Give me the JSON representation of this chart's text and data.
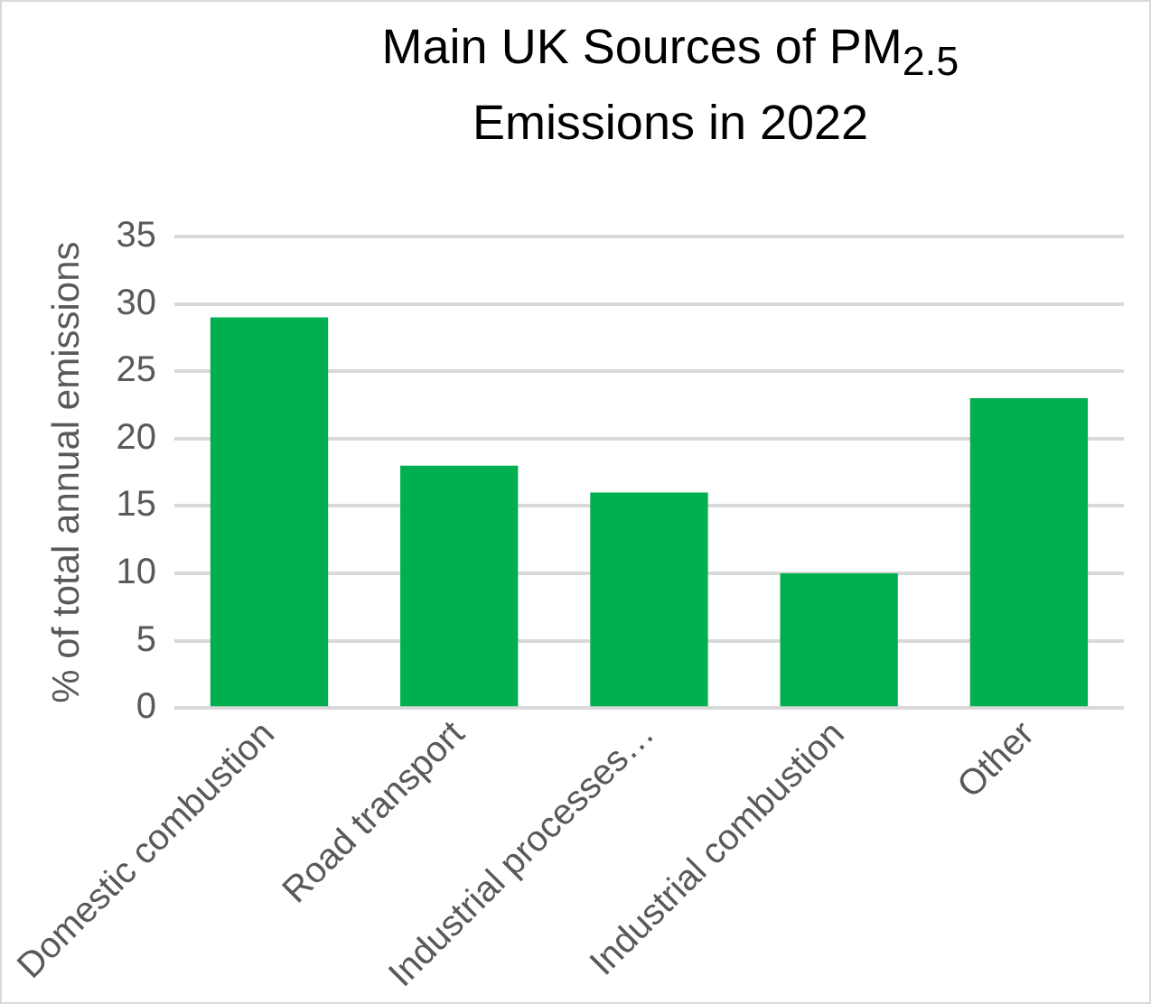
{
  "chart_data": {
    "type": "bar",
    "title": "Main UK Sources of PM$_{2.5}$ Emissions in 2022",
    "ylabel": "% of total annual emissions",
    "categories": [
      "Domestic combustion",
      "Road transport",
      "Industrial processes…",
      "Industrial combustion",
      "Other"
    ],
    "values": [
      29,
      18,
      16,
      10,
      23
    ],
    "color": "#00b050",
    "ylim": [
      0,
      35
    ],
    "yticks": [
      0,
      5,
      10,
      15,
      20,
      25,
      30,
      35
    ],
    "grid": "y",
    "legend": false
  }
}
